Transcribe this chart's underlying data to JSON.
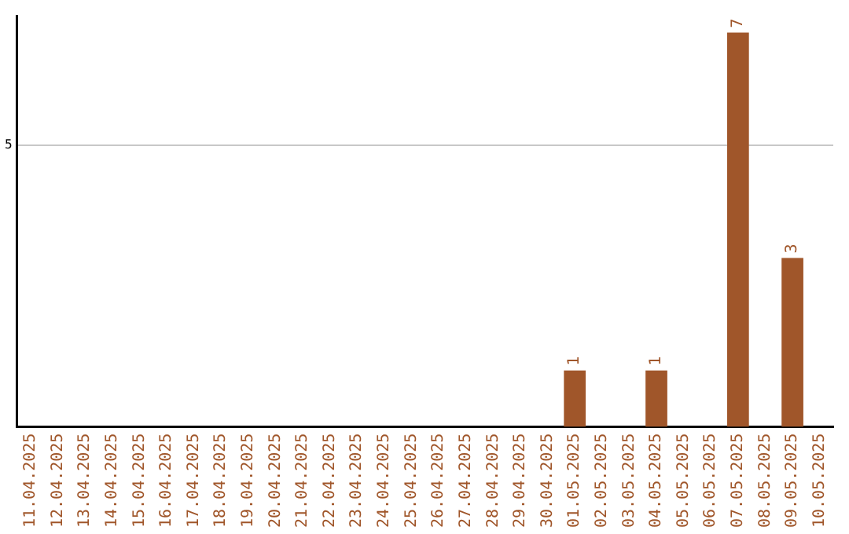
{
  "chart_data": {
    "type": "bar",
    "categories": [
      "11.04.2025",
      "12.04.2025",
      "13.04.2025",
      "14.04.2025",
      "15.04.2025",
      "16.04.2025",
      "17.04.2025",
      "18.04.2025",
      "19.04.2025",
      "20.04.2025",
      "21.04.2025",
      "22.04.2025",
      "23.04.2025",
      "24.04.2025",
      "25.04.2025",
      "26.04.2025",
      "27.04.2025",
      "28.04.2025",
      "29.04.2025",
      "30.04.2025",
      "01.05.2025",
      "02.05.2025",
      "03.05.2025",
      "04.05.2025",
      "05.05.2025",
      "06.05.2025",
      "07.05.2025",
      "08.05.2025",
      "09.05.2025",
      "10.05.2025"
    ],
    "values": [
      null,
      null,
      null,
      null,
      null,
      null,
      null,
      null,
      null,
      null,
      null,
      null,
      null,
      null,
      null,
      null,
      null,
      null,
      null,
      null,
      1,
      null,
      null,
      1,
      null,
      null,
      7,
      null,
      3,
      null
    ],
    "color": "#a0562a",
    "ylim": [
      0,
      7.3
    ],
    "yticks": [
      5
    ],
    "grid": "y",
    "legend": false,
    "data_labels": true
  }
}
